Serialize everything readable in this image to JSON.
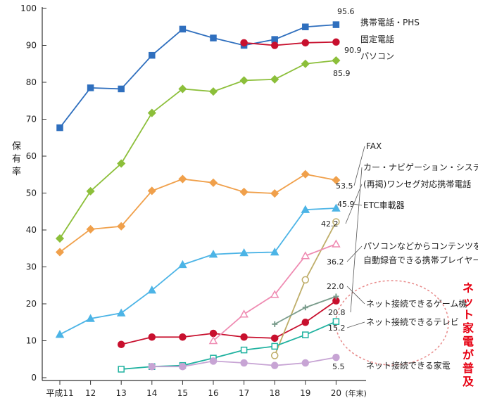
{
  "chart_data": {
    "type": "line",
    "ylabel": "保有率",
    "x": [
      "平成11",
      "12",
      "13",
      "14",
      "15",
      "16",
      "17",
      "18",
      "19",
      "20"
    ],
    "x_unit": "(年末)",
    "ylim": [
      0,
      100
    ],
    "yticks": [
      0,
      10,
      20,
      30,
      40,
      50,
      60,
      70,
      80,
      90,
      100
    ],
    "grid": false,
    "series": [
      {
        "name": "携帯電話・PHS",
        "color": "#2f6fbe",
        "marker": "square",
        "values": [
          67.7,
          78.5,
          78.2,
          87.3,
          94.4,
          92.0,
          90.0,
          91.6,
          95.0,
          95.6
        ],
        "end_label": "95.6"
      },
      {
        "name": "固定電話",
        "color": "#c8102e",
        "marker": "circle",
        "values": [
          null,
          null,
          null,
          null,
          null,
          null,
          90.7,
          90.0,
          90.7,
          90.9
        ],
        "end_label": "90.9"
      },
      {
        "name": "パソコン",
        "color": "#8cbf3a",
        "marker": "diamond",
        "values": [
          37.7,
          50.5,
          58.0,
          71.7,
          78.2,
          77.5,
          80.5,
          80.8,
          85.0,
          85.9
        ],
        "end_label": "85.9"
      },
      {
        "name": "FAX",
        "color": "#f0a04b",
        "marker": "diamond",
        "values": [
          34.0,
          40.2,
          41.0,
          50.6,
          53.8,
          52.8,
          50.3,
          49.9,
          55.1,
          53.5
        ],
        "end_label": "53.5"
      },
      {
        "name": "カー・ナビゲーション・システム",
        "color": "#c8102e",
        "marker": "circle",
        "values": [
          null,
          null,
          9.0,
          11.0,
          11.0,
          12.0,
          11.0,
          10.7,
          15.0,
          20.8
        ],
        "end_label": "20.8"
      },
      {
        "name": "(再掲)ワンセグ対応携帯電話",
        "color": "#bfae6a",
        "marker": "circle-open",
        "values": [
          null,
          null,
          null,
          null,
          null,
          null,
          null,
          6.0,
          26.5,
          42.2
        ],
        "end_label": "42.2"
      },
      {
        "name": "ETC車載器",
        "color": "#4cb4e6",
        "marker": "triangle",
        "values": [
          11.7,
          16.0,
          17.5,
          23.7,
          30.6,
          33.4,
          33.8,
          34.0,
          45.5,
          45.9
        ],
        "end_label": "45.9"
      },
      {
        "name": "パソコンなどからコンテンツを自動録音できる携帯プレイヤー",
        "color": "#ef8bb2",
        "marker": "triangle-open",
        "values": [
          null,
          null,
          null,
          null,
          null,
          10.0,
          17.2,
          22.5,
          33.0,
          36.2
        ],
        "end_label": "36.2"
      },
      {
        "name": "ネット接続できるゲーム機",
        "color": "#7a9c8c",
        "marker": "plus",
        "values": [
          null,
          null,
          null,
          null,
          null,
          null,
          null,
          14.5,
          19.0,
          22.0
        ],
        "end_label": "22.0"
      },
      {
        "name": "ネット接続できるテレビ",
        "color": "#20b2a0",
        "marker": "square-open",
        "values": [
          null,
          null,
          2.3,
          3.0,
          3.3,
          5.3,
          7.5,
          8.5,
          11.6,
          15.2
        ],
        "end_label": "15.2"
      },
      {
        "name": "ネット接続できる家電",
        "color": "#c7a4d4",
        "marker": "circle",
        "values": [
          null,
          null,
          null,
          3.0,
          3.0,
          4.5,
          4.0,
          3.3,
          4.0,
          5.5
        ],
        "end_label": "5.5"
      }
    ],
    "annotation": "ネット家電が普及"
  }
}
